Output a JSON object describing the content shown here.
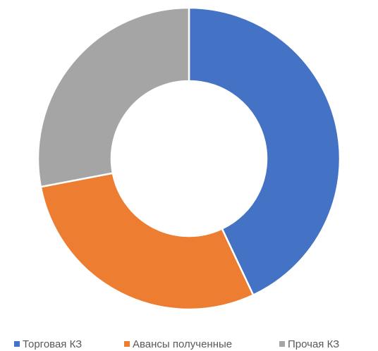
{
  "chart_data": {
    "type": "doughnut",
    "categories": [
      "Торговая КЗ",
      "Авансы полученные",
      "Прочая КЗ"
    ],
    "values": [
      43,
      29,
      28
    ],
    "colors": [
      "#4472c4",
      "#ed7d31",
      "#a5a5a5"
    ],
    "legend": "bottom"
  }
}
